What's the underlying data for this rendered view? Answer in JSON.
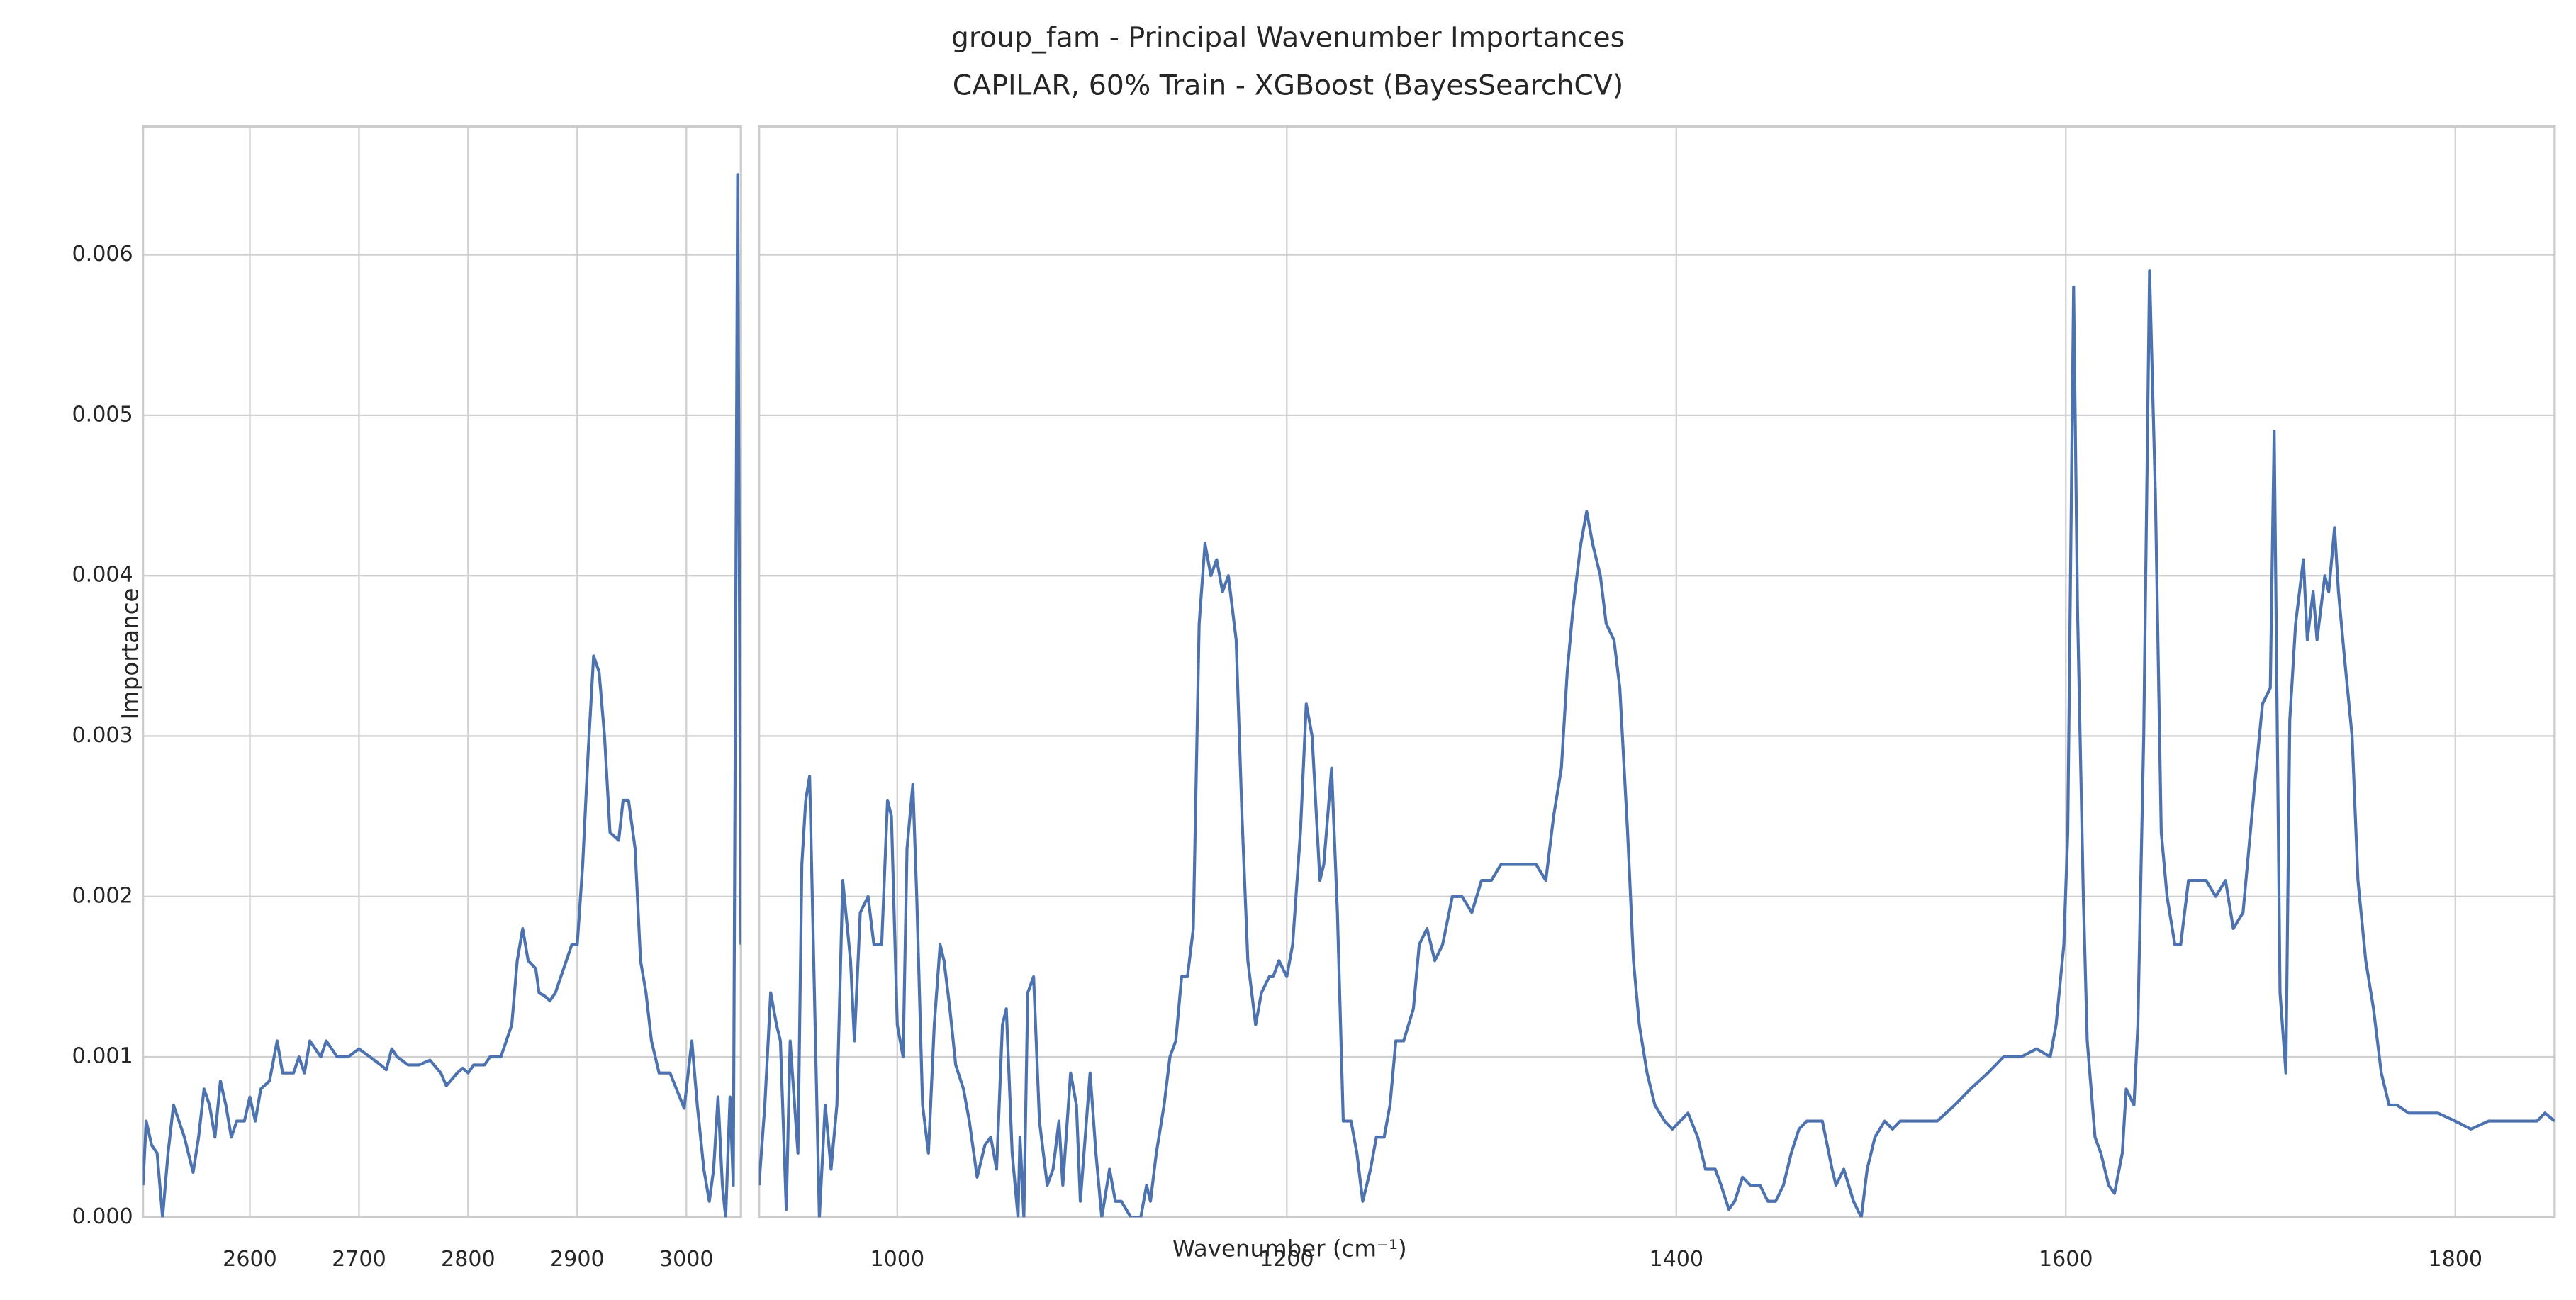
{
  "chart_data": [
    {
      "type": "line",
      "title": "group_fam - Principal Wavenumber Importances",
      "subtitle": "CAPILAR, 60% Train - XGBoost (BayesSearchCV)",
      "ylabel": "Importance",
      "color": "#4c72b0",
      "grid": true,
      "ytick_labels": true,
      "xlim": [
        2502,
        3050
      ],
      "xticks": [
        2600,
        2700,
        2800,
        2900,
        3000
      ],
      "ylim": [
        0,
        0.0068
      ],
      "yticks": [
        {
          "value": 0,
          "label": "0.000"
        },
        {
          "value": 0.001,
          "label": "0.001"
        },
        {
          "value": 0.002,
          "label": "0.002"
        },
        {
          "value": 0.003,
          "label": "0.003"
        },
        {
          "value": 0.004,
          "label": "0.004"
        },
        {
          "value": 0.005,
          "label": "0.005"
        },
        {
          "value": 0.006,
          "label": "0.006"
        }
      ],
      "x": [
        2502,
        2505,
        2510,
        2515,
        2520,
        2525,
        2530,
        2540,
        2548,
        2553,
        2558,
        2563,
        2568,
        2573,
        2578,
        2583,
        2588,
        2595,
        2600,
        2605,
        2610,
        2618,
        2625,
        2630,
        2640,
        2645,
        2650,
        2655,
        2665,
        2670,
        2680,
        2690,
        2700,
        2710,
        2720,
        2725,
        2730,
        2735,
        2745,
        2755,
        2765,
        2775,
        2780,
        2790,
        2795,
        2800,
        2805,
        2815,
        2820,
        2830,
        2840,
        2845,
        2850,
        2855,
        2862,
        2865,
        2870,
        2875,
        2880,
        2890,
        2895,
        2900,
        2905,
        2910,
        2915,
        2920,
        2925,
        2930,
        2938,
        2942,
        2947,
        2953,
        2958,
        2963,
        2968,
        2975,
        2985,
        2998,
        3005,
        3010,
        3016,
        3021,
        3025,
        3029,
        3033,
        3036,
        3040,
        3043,
        3047,
        3050
      ],
      "values": [
        0.0002,
        0.0006,
        0.00045,
        0.0004,
        0.0,
        0.0004,
        0.0007,
        0.0005,
        0.00028,
        0.0005,
        0.0008,
        0.0007,
        0.0005,
        0.00085,
        0.0007,
        0.0005,
        0.0006,
        0.0006,
        0.00075,
        0.0006,
        0.0008,
        0.00085,
        0.0011,
        0.0009,
        0.0009,
        0.001,
        0.0009,
        0.0011,
        0.001,
        0.0011,
        0.001,
        0.001,
        0.00105,
        0.001,
        0.00095,
        0.00092,
        0.00105,
        0.001,
        0.00095,
        0.00095,
        0.00098,
        0.0009,
        0.00082,
        0.0009,
        0.00093,
        0.0009,
        0.00095,
        0.00095,
        0.001,
        0.001,
        0.0012,
        0.0016,
        0.0018,
        0.0016,
        0.00155,
        0.0014,
        0.00138,
        0.00135,
        0.0014,
        0.0016,
        0.0017,
        0.0017,
        0.0022,
        0.0029,
        0.0035,
        0.0034,
        0.003,
        0.0024,
        0.00235,
        0.0026,
        0.0026,
        0.0023,
        0.0016,
        0.0014,
        0.0011,
        0.0009,
        0.0009,
        0.00068,
        0.0011,
        0.0007,
        0.0003,
        0.0001,
        0.0003,
        0.00075,
        0.0002,
        0.0,
        0.00075,
        0.0002,
        0.0065,
        0.0017
      ]
    },
    {
      "type": "line",
      "xlabel": "Wavenumber (cm⁻¹)",
      "color": "#4c72b0",
      "grid": true,
      "ytick_labels": false,
      "xlim": [
        929,
        1851
      ],
      "xticks": [
        1000,
        1200,
        1400,
        1600,
        1800
      ],
      "ylim": [
        0,
        0.0068
      ],
      "yticks": [
        0,
        0.001,
        0.002,
        0.003,
        0.004,
        0.005,
        0.006
      ],
      "x": [
        929,
        932,
        935,
        938,
        940,
        943,
        945,
        949,
        951,
        953,
        955,
        958,
        960,
        963,
        966,
        969,
        972,
        976,
        978,
        981,
        985,
        988,
        992,
        995,
        997,
        1000,
        1003,
        1005,
        1008,
        1010,
        1013,
        1016,
        1019,
        1022,
        1024,
        1027,
        1030,
        1034,
        1037,
        1041,
        1045,
        1048,
        1051,
        1054,
        1056,
        1059,
        1062,
        1063,
        1065,
        1067,
        1070,
        1073,
        1077,
        1080,
        1083,
        1085,
        1089,
        1092,
        1094,
        1099,
        1102,
        1105,
        1109,
        1112,
        1115,
        1120,
        1125,
        1128,
        1130,
        1133,
        1137,
        1140,
        1143,
        1146,
        1149,
        1152,
        1155,
        1158,
        1161,
        1164,
        1167,
        1170,
        1174,
        1177,
        1180,
        1184,
        1187,
        1191,
        1193,
        1196,
        1200,
        1203,
        1207,
        1210,
        1213,
        1217,
        1219,
        1223,
        1226,
        1229,
        1233,
        1236,
        1239,
        1243,
        1246,
        1250,
        1253,
        1256,
        1260,
        1265,
        1268,
        1272,
        1276,
        1280,
        1285,
        1290,
        1295,
        1300,
        1305,
        1310,
        1315,
        1322,
        1328,
        1333,
        1337,
        1341,
        1344,
        1347,
        1351,
        1354,
        1357,
        1361,
        1364,
        1368,
        1371,
        1375,
        1378,
        1381,
        1385,
        1389,
        1394,
        1398,
        1402,
        1406,
        1411,
        1415,
        1420,
        1423,
        1427,
        1430,
        1434,
        1438,
        1443,
        1447,
        1451,
        1455,
        1459,
        1463,
        1467,
        1471,
        1475,
        1480,
        1482,
        1486,
        1491,
        1495,
        1498,
        1502,
        1507,
        1511,
        1515,
        1519,
        1524,
        1528,
        1534,
        1543,
        1551,
        1560,
        1568,
        1577,
        1585,
        1592,
        1595,
        1599,
        1601,
        1604,
        1606,
        1609,
        1611,
        1615,
        1618,
        1622,
        1625,
        1629,
        1631,
        1635,
        1637,
        1640,
        1643,
        1646,
        1649,
        1652,
        1656,
        1659,
        1663,
        1667,
        1672,
        1677,
        1682,
        1686,
        1691,
        1694,
        1697,
        1701,
        1705,
        1707,
        1710,
        1713,
        1715,
        1718,
        1722,
        1724,
        1727,
        1729,
        1733,
        1735,
        1738,
        1740,
        1743,
        1747,
        1750,
        1754,
        1758,
        1762,
        1766,
        1770,
        1776,
        1783,
        1791,
        1800,
        1808,
        1817,
        1825,
        1834,
        1842,
        1846,
        1851
      ],
      "values": [
        0.0002,
        0.0007,
        0.0014,
        0.0012,
        0.0011,
        5e-05,
        0.0011,
        0.0004,
        0.0022,
        0.0026,
        0.00275,
        0.0011,
        0.0,
        0.0007,
        0.0003,
        0.0007,
        0.0021,
        0.0016,
        0.0011,
        0.0019,
        0.002,
        0.0017,
        0.0017,
        0.0026,
        0.0025,
        0.0012,
        0.001,
        0.0023,
        0.0027,
        0.002,
        0.0007,
        0.0004,
        0.0012,
        0.0017,
        0.0016,
        0.0013,
        0.00095,
        0.0008,
        0.0006,
        0.00025,
        0.00045,
        0.0005,
        0.0003,
        0.0012,
        0.0013,
        0.0004,
        0.0,
        0.0005,
        0.0,
        0.0014,
        0.0015,
        0.0006,
        0.0002,
        0.0003,
        0.0006,
        0.0002,
        0.0009,
        0.0007,
        0.0001,
        0.0009,
        0.0004,
        0.0,
        0.0003,
        0.0001,
        0.0001,
        0.0,
        0.0,
        0.0002,
        0.0001,
        0.0004,
        0.0007,
        0.001,
        0.0011,
        0.0015,
        0.0015,
        0.0018,
        0.0037,
        0.0042,
        0.004,
        0.0041,
        0.0039,
        0.004,
        0.0036,
        0.0025,
        0.0016,
        0.0012,
        0.0014,
        0.0015,
        0.0015,
        0.0016,
        0.0015,
        0.0017,
        0.0024,
        0.0032,
        0.003,
        0.0021,
        0.0022,
        0.0028,
        0.0019,
        0.0006,
        0.0006,
        0.0004,
        0.0001,
        0.0003,
        0.0005,
        0.0005,
        0.0007,
        0.0011,
        0.0011,
        0.0013,
        0.0017,
        0.0018,
        0.0016,
        0.0017,
        0.002,
        0.002,
        0.0019,
        0.0021,
        0.0021,
        0.0022,
        0.0022,
        0.0022,
        0.0022,
        0.0021,
        0.0025,
        0.0028,
        0.0034,
        0.0038,
        0.0042,
        0.0044,
        0.0042,
        0.004,
        0.0037,
        0.0036,
        0.0033,
        0.0024,
        0.0016,
        0.0012,
        0.0009,
        0.0007,
        0.0006,
        0.00055,
        0.0006,
        0.00065,
        0.0005,
        0.0003,
        0.0003,
        0.0002,
        5e-05,
        0.0001,
        0.00025,
        0.0002,
        0.0002,
        0.0001,
        0.0001,
        0.0002,
        0.0004,
        0.00055,
        0.0006,
        0.0006,
        0.0006,
        0.0003,
        0.0002,
        0.0003,
        0.0001,
        0.0,
        0.0003,
        0.0005,
        0.0006,
        0.00055,
        0.0006,
        0.0006,
        0.0006,
        0.0006,
        0.0006,
        0.0007,
        0.0008,
        0.0009,
        0.001,
        0.001,
        0.00105,
        0.001,
        0.0012,
        0.0017,
        0.0024,
        0.0058,
        0.0038,
        0.002,
        0.0011,
        0.0005,
        0.0004,
        0.0002,
        0.00015,
        0.0004,
        0.0008,
        0.0007,
        0.0012,
        0.003,
        0.0059,
        0.0045,
        0.0024,
        0.002,
        0.0017,
        0.0017,
        0.0021,
        0.0021,
        0.0021,
        0.002,
        0.0021,
        0.0018,
        0.0019,
        0.0023,
        0.0027,
        0.0032,
        0.0033,
        0.0049,
        0.0014,
        0.0009,
        0.0031,
        0.0037,
        0.0041,
        0.0036,
        0.0039,
        0.0036,
        0.004,
        0.0039,
        0.0043,
        0.0039,
        0.0035,
        0.003,
        0.0021,
        0.0016,
        0.0013,
        0.0009,
        0.0007,
        0.0007,
        0.00065,
        0.00065,
        0.00065,
        0.0006,
        0.00055,
        0.0006,
        0.0006,
        0.0006,
        0.0006,
        0.00065,
        0.0006
      ]
    }
  ]
}
